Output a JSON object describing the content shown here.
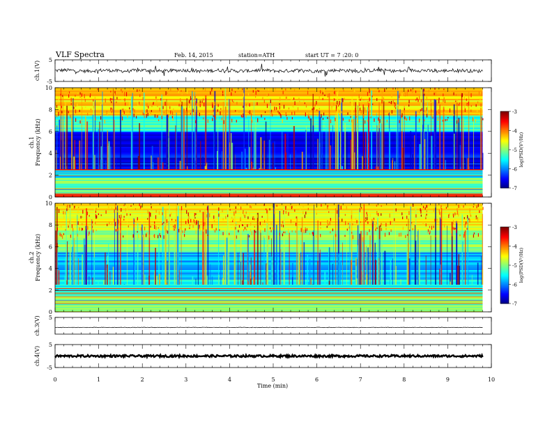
{
  "header": {
    "title": "VLF Spectra",
    "date": "Feb. 14, 2015",
    "station": "station=ATH",
    "start": "start UT = 7 :20: 0"
  },
  "chart_data": [
    {
      "type": "line",
      "panel": "ch1-waveform",
      "ylabel": "ch.1(V)",
      "ylim": [
        -5,
        5
      ],
      "yticks": [
        "5",
        "-5"
      ],
      "xlim": [
        0,
        10
      ],
      "note_values": "noisy waveform centered near 0 V, amplitude roughly ±1.5 V with spikes",
      "x_end": 9.8
    },
    {
      "type": "heatmap",
      "panel": "ch1-spectrogram",
      "ylabel": "ch.1\nFrequency (kHz)",
      "ylabel_lines": [
        "ch.1",
        "Frequency (kHz)"
      ],
      "ylim": [
        0,
        10
      ],
      "yticks": [
        "0",
        "2",
        "4",
        "6",
        "8",
        "10"
      ],
      "xlim": [
        0,
        10
      ],
      "x_end": 9.8,
      "colorbar": {
        "label": "log(PSD(V²/Hz)",
        "label_text": "log(PSD(V²/Hz)",
        "range": [
          -7,
          -3
        ],
        "ticks": [
          "-3",
          "-4",
          "-5",
          "-6",
          "-7"
        ]
      },
      "bands": [
        {
          "from": 0.0,
          "to": 0.4,
          "logpsd": -3.4
        },
        {
          "from": 0.4,
          "to": 1.8,
          "logpsd": -5.0
        },
        {
          "from": 1.8,
          "to": 2.5,
          "logpsd": -5.6
        },
        {
          "from": 2.5,
          "to": 6.0,
          "logpsd": -6.5
        },
        {
          "from": 6.0,
          "to": 7.5,
          "logpsd": -5.3
        },
        {
          "from": 7.5,
          "to": 10.0,
          "logpsd": -4.4
        }
      ]
    },
    {
      "type": "heatmap",
      "panel": "ch2-spectrogram",
      "ylabel": "ch.2\nFrequency (kHz)",
      "ylabel_lines": [
        "ch.2",
        "Frequency (kHz)"
      ],
      "ylim": [
        0,
        10
      ],
      "yticks": [
        "0",
        "2",
        "4",
        "6",
        "8",
        "10"
      ],
      "xlim": [
        0,
        10
      ],
      "x_end": 9.8,
      "colorbar": {
        "label": "log(PSD(V²/Hz)",
        "label_text": "log(PSD(V²/Hz)",
        "range": [
          -7,
          -3
        ],
        "ticks": [
          "-3",
          "-4",
          "-5",
          "-6",
          "-7"
        ]
      },
      "bands": [
        {
          "from": 0.0,
          "to": 1.5,
          "logpsd": -4.8
        },
        {
          "from": 1.5,
          "to": 3.0,
          "logpsd": -5.4
        },
        {
          "from": 3.0,
          "to": 5.5,
          "logpsd": -5.8
        },
        {
          "from": 5.5,
          "to": 7.5,
          "logpsd": -5.0
        },
        {
          "from": 7.5,
          "to": 10.0,
          "logpsd": -4.5
        }
      ]
    },
    {
      "type": "line",
      "panel": "ch3-waveform",
      "ylabel": "ch.3(V)",
      "ylim": [
        -5,
        5
      ],
      "yticks": [
        "5"
      ],
      "xlim": [
        0,
        10
      ],
      "x_end": 9.8,
      "level": -1.0
    },
    {
      "type": "line",
      "panel": "ch4-waveform",
      "ylabel": "ch.4(V)",
      "ylim": [
        -5,
        5
      ],
      "yticks": [
        "5",
        "-5"
      ],
      "xlim": [
        0,
        10
      ],
      "x_end": 9.8,
      "level": 0.0
    }
  ],
  "x_axis": {
    "label": "Time (min)",
    "ticks": [
      "0",
      "1",
      "2",
      "3",
      "4",
      "5",
      "6",
      "7",
      "8",
      "9",
      "10"
    ]
  }
}
